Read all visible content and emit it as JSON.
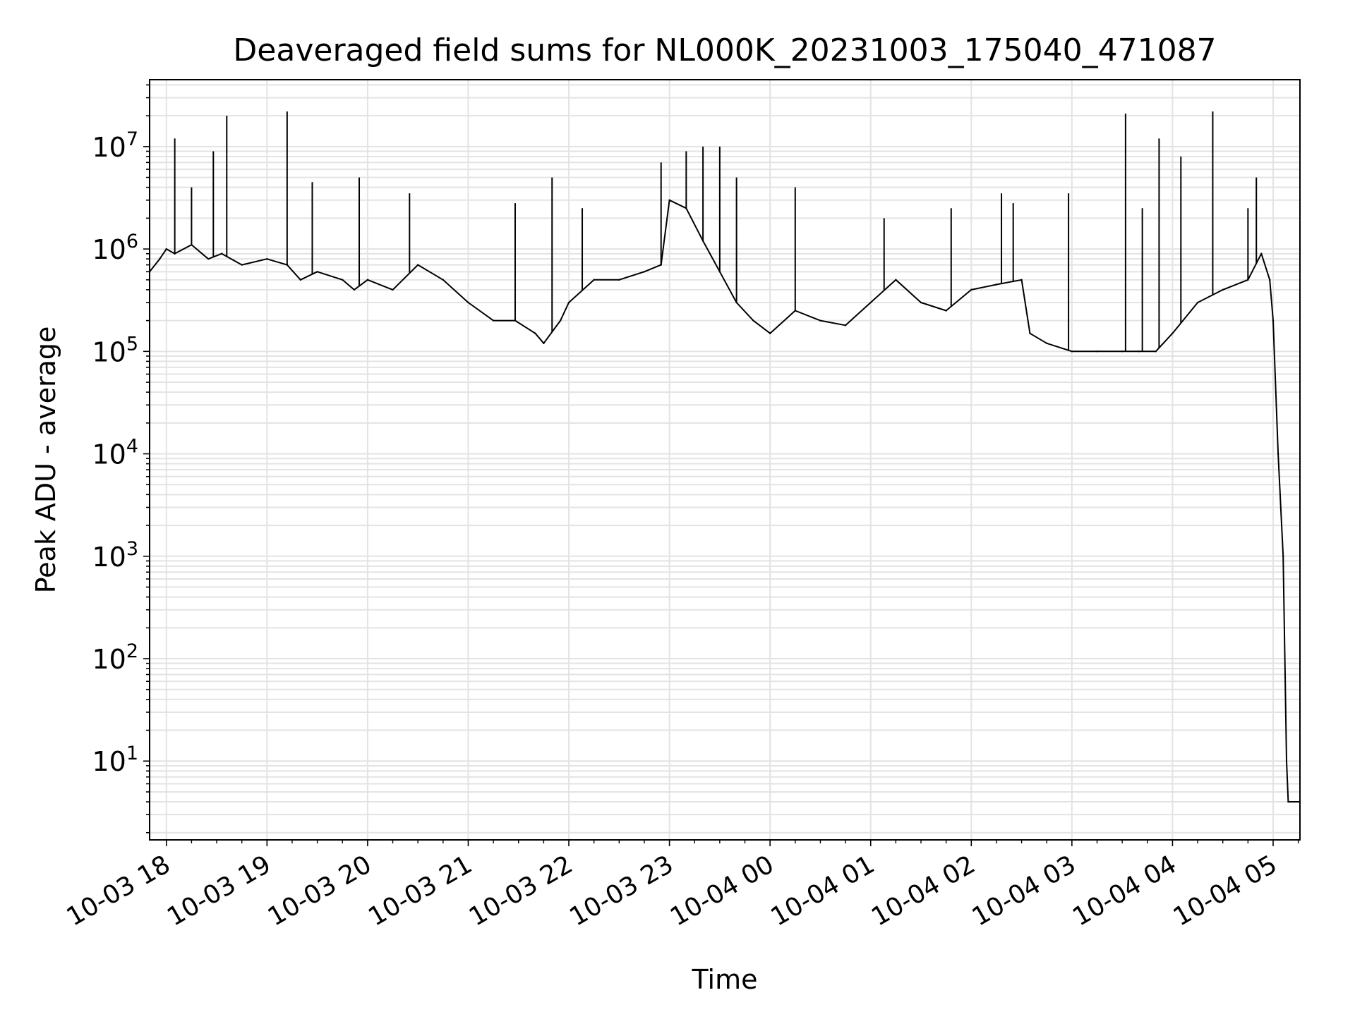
{
  "chart_data": {
    "type": "line",
    "title": "Deaveraged field sums for NL000K_20231003_175040_471087",
    "xlabel": "Time",
    "ylabel": "Peak ADU - average",
    "x_scale": "time",
    "y_scale": "log",
    "xlim": [
      "2023-10-03 17:50",
      "2023-10-04 05:16"
    ],
    "ylim": [
      1.7,
      45000000
    ],
    "grid": true,
    "legend": "none",
    "line_color": "#000000",
    "x_ticks": [
      {
        "value": "2023-10-03 18:00",
        "label": "10-03 18"
      },
      {
        "value": "2023-10-03 19:00",
        "label": "10-03 19"
      },
      {
        "value": "2023-10-03 20:00",
        "label": "10-03 20"
      },
      {
        "value": "2023-10-03 21:00",
        "label": "10-03 21"
      },
      {
        "value": "2023-10-03 22:00",
        "label": "10-03 22"
      },
      {
        "value": "2023-10-03 23:00",
        "label": "10-03 23"
      },
      {
        "value": "2023-10-04 00:00",
        "label": "10-04 00"
      },
      {
        "value": "2023-10-04 01:00",
        "label": "10-04 01"
      },
      {
        "value": "2023-10-04 02:00",
        "label": "10-04 02"
      },
      {
        "value": "2023-10-04 03:00",
        "label": "10-04 03"
      },
      {
        "value": "2023-10-04 04:00",
        "label": "10-04 04"
      },
      {
        "value": "2023-10-04 05:00",
        "label": "10-04 05"
      }
    ],
    "y_ticks": [
      {
        "value": 10,
        "base": "10",
        "exp": "1"
      },
      {
        "value": 100,
        "base": "10",
        "exp": "2"
      },
      {
        "value": 1000,
        "base": "10",
        "exp": "3"
      },
      {
        "value": 10000,
        "base": "10",
        "exp": "4"
      },
      {
        "value": 100000,
        "base": "10",
        "exp": "5"
      },
      {
        "value": 1000000,
        "base": "10",
        "exp": "6"
      },
      {
        "value": 10000000,
        "base": "10",
        "exp": "7"
      }
    ],
    "series": [
      {
        "x": [
          "2023-10-03 17:50",
          "2023-10-03 17:56",
          "2023-10-03 18:00",
          "2023-10-03 18:05",
          "2023-10-03 18:15",
          "2023-10-03 18:25",
          "2023-10-03 18:33",
          "2023-10-03 18:45",
          "2023-10-03 19:00",
          "2023-10-03 19:12",
          "2023-10-03 19:20",
          "2023-10-03 19:30",
          "2023-10-03 19:45",
          "2023-10-03 19:52",
          "2023-10-03 20:00",
          "2023-10-03 20:15",
          "2023-10-03 20:30",
          "2023-10-03 20:45",
          "2023-10-03 21:00",
          "2023-10-03 21:15",
          "2023-10-03 21:28",
          "2023-10-03 21:40",
          "2023-10-03 21:45",
          "2023-10-03 21:55",
          "2023-10-03 22:00",
          "2023-10-03 22:15",
          "2023-10-03 22:30",
          "2023-10-03 22:45",
          "2023-10-03 22:55",
          "2023-10-03 23:00",
          "2023-10-03 23:10",
          "2023-10-03 23:20",
          "2023-10-03 23:30",
          "2023-10-03 23:40",
          "2023-10-03 23:50",
          "2023-10-04 00:00",
          "2023-10-04 00:15",
          "2023-10-04 00:30",
          "2023-10-04 00:45",
          "2023-10-04 01:00",
          "2023-10-04 01:15",
          "2023-10-04 01:30",
          "2023-10-04 01:45",
          "2023-10-04 02:00",
          "2023-10-04 02:15",
          "2023-10-04 02:30",
          "2023-10-04 02:35",
          "2023-10-04 02:45",
          "2023-10-04 03:00",
          "2023-10-04 03:15",
          "2023-10-04 03:30",
          "2023-10-04 03:40",
          "2023-10-04 03:50",
          "2023-10-04 04:00",
          "2023-10-04 04:15",
          "2023-10-04 04:30",
          "2023-10-04 04:45",
          "2023-10-04 04:53",
          "2023-10-04 04:58",
          "2023-10-04 05:00",
          "2023-10-04 05:03",
          "2023-10-04 05:06",
          "2023-10-04 05:08",
          "2023-10-04 05:09",
          "2023-10-04 05:16"
        ],
        "y": [
          600000,
          800000,
          1000000,
          900000,
          1100000,
          800000,
          900000,
          700000,
          800000,
          700000,
          500000,
          600000,
          500000,
          400000,
          500000,
          400000,
          700000,
          500000,
          300000,
          200000,
          200000,
          150000,
          120000,
          200000,
          300000,
          500000,
          500000,
          600000,
          700000,
          3000000,
          2500000,
          1200000,
          600000,
          300000,
          200000,
          150000,
          250000,
          200000,
          180000,
          300000,
          500000,
          300000,
          250000,
          400000,
          450000,
          500000,
          150000,
          120000,
          100000,
          100000,
          100000,
          100000,
          100000,
          150000,
          300000,
          400000,
          500000,
          900000,
          500000,
          200000,
          10000,
          1000,
          10,
          4,
          4
        ]
      }
    ],
    "spikes": [
      {
        "x": "2023-10-03 18:05",
        "y": 12000000
      },
      {
        "x": "2023-10-03 18:15",
        "y": 4000000
      },
      {
        "x": "2023-10-03 18:28",
        "y": 9000000
      },
      {
        "x": "2023-10-03 18:36",
        "y": 20000000
      },
      {
        "x": "2023-10-03 19:12",
        "y": 22000000
      },
      {
        "x": "2023-10-03 19:27",
        "y": 4500000
      },
      {
        "x": "2023-10-03 19:55",
        "y": 5000000
      },
      {
        "x": "2023-10-03 20:25",
        "y": 3500000
      },
      {
        "x": "2023-10-03 21:28",
        "y": 2800000
      },
      {
        "x": "2023-10-03 21:50",
        "y": 5000000
      },
      {
        "x": "2023-10-03 22:08",
        "y": 2500000
      },
      {
        "x": "2023-10-03 22:55",
        "y": 7000000
      },
      {
        "x": "2023-10-03 23:10",
        "y": 9000000
      },
      {
        "x": "2023-10-03 23:20",
        "y": 10000000
      },
      {
        "x": "2023-10-03 23:30",
        "y": 10000000
      },
      {
        "x": "2023-10-03 23:40",
        "y": 5000000
      },
      {
        "x": "2023-10-04 00:15",
        "y": 4000000
      },
      {
        "x": "2023-10-04 01:08",
        "y": 2000000
      },
      {
        "x": "2023-10-04 01:48",
        "y": 2500000
      },
      {
        "x": "2023-10-04 02:18",
        "y": 3500000
      },
      {
        "x": "2023-10-04 02:25",
        "y": 2800000
      },
      {
        "x": "2023-10-04 02:58",
        "y": 3500000
      },
      {
        "x": "2023-10-04 03:32",
        "y": 21000000
      },
      {
        "x": "2023-10-04 03:42",
        "y": 2500000
      },
      {
        "x": "2023-10-04 03:52",
        "y": 12000000
      },
      {
        "x": "2023-10-04 04:05",
        "y": 8000000
      },
      {
        "x": "2023-10-04 04:24",
        "y": 22000000
      },
      {
        "x": "2023-10-04 04:45",
        "y": 2500000
      },
      {
        "x": "2023-10-04 04:50",
        "y": 5000000
      }
    ]
  }
}
